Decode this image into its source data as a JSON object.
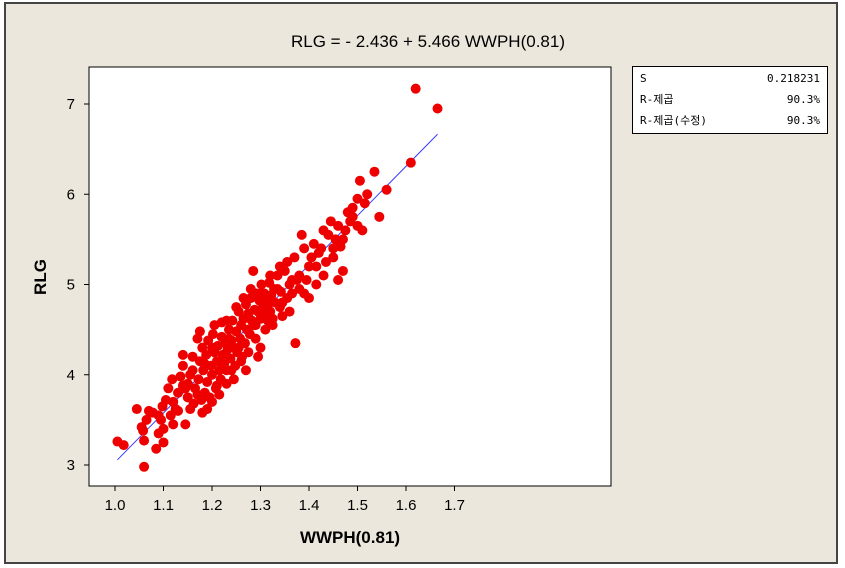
{
  "colors": {
    "background": "#ebe7dc",
    "plot_area": "#ffffff",
    "points": "#ee0000",
    "fit_line": "#3a3aff"
  },
  "stats": [
    {
      "label": "S",
      "value": "0.218231"
    },
    {
      "label": "R-제곱",
      "value": "90.3%"
    },
    {
      "label": "R-제곱(수정)",
      "value": "90.3%"
    }
  ],
  "chart_data": {
    "type": "scatter",
    "title": "RLG = - 2.436 + 5.466 WWPH(0.81)",
    "xlabel": "WWPH(0.81)",
    "ylabel": "RLG",
    "xlim": [
      0.98,
      1.71
    ],
    "ylim": [
      2.8,
      7.4
    ],
    "x_ticks": [
      1.0,
      1.1,
      1.2,
      1.3,
      1.4,
      1.5,
      1.6,
      1.7
    ],
    "x_tick_labels": [
      "1.0",
      "1.1",
      "1.2",
      "1.3",
      "1.4",
      "1.5",
      "1.6",
      "1.7"
    ],
    "y_ticks": [
      3,
      4,
      5,
      6,
      7
    ],
    "y_tick_labels": [
      "3",
      "4",
      "5",
      "6",
      "7"
    ],
    "grid": false,
    "fit_line": {
      "intercept": -2.436,
      "slope": 5.466,
      "x_range": [
        1.005,
        1.665
      ]
    },
    "points": [
      [
        1.005,
        3.26
      ],
      [
        1.018,
        3.22
      ],
      [
        1.045,
        3.62
      ],
      [
        1.055,
        3.42
      ],
      [
        1.058,
        3.38
      ],
      [
        1.06,
        2.98
      ],
      [
        1.06,
        3.27
      ],
      [
        1.065,
        3.5
      ],
      [
        1.07,
        3.6
      ],
      [
        1.078,
        3.58
      ],
      [
        1.085,
        3.18
      ],
      [
        1.09,
        3.35
      ],
      [
        1.095,
        3.5
      ],
      [
        1.098,
        3.65
      ],
      [
        1.1,
        3.4
      ],
      [
        1.105,
        3.72
      ],
      [
        1.11,
        3.85
      ],
      [
        1.115,
        3.55
      ],
      [
        1.118,
        3.95
      ],
      [
        1.12,
        3.7
      ],
      [
        1.125,
        3.62
      ],
      [
        1.13,
        3.8
      ],
      [
        1.135,
        3.98
      ],
      [
        1.14,
        3.88
      ],
      [
        1.14,
        4.22
      ],
      [
        1.145,
        3.45
      ],
      [
        1.15,
        3.75
      ],
      [
        1.15,
        3.9
      ],
      [
        1.155,
        3.62
      ],
      [
        1.16,
        4.05
      ],
      [
        1.162,
        3.68
      ],
      [
        1.165,
        3.85
      ],
      [
        1.17,
        3.78
      ],
      [
        1.172,
        3.95
      ],
      [
        1.175,
        4.15
      ],
      [
        1.175,
        4.48
      ],
      [
        1.178,
        3.72
      ],
      [
        1.18,
        4.3
      ],
      [
        1.182,
        4.05
      ],
      [
        1.185,
        3.8
      ],
      [
        1.188,
        4.22
      ],
      [
        1.19,
        3.92
      ],
      [
        1.192,
        4.38
      ],
      [
        1.195,
        3.75
      ],
      [
        1.198,
        4.1
      ],
      [
        1.2,
        4.0
      ],
      [
        1.202,
        4.45
      ],
      [
        1.205,
        4.25
      ],
      [
        1.208,
        3.85
      ],
      [
        1.21,
        4.15
      ],
      [
        1.212,
        4.32
      ],
      [
        1.215,
        4.05
      ],
      [
        1.218,
        3.95
      ],
      [
        1.22,
        4.42
      ],
      [
        1.222,
        4.22
      ],
      [
        1.225,
        4.12
      ],
      [
        1.228,
        4.35
      ],
      [
        1.23,
        4.05
      ],
      [
        1.232,
        4.28
      ],
      [
        1.235,
        4.5
      ],
      [
        1.238,
        4.18
      ],
      [
        1.24,
        4.38
      ],
      [
        1.242,
        4.6
      ],
      [
        1.245,
        4.3
      ],
      [
        1.248,
        4.1
      ],
      [
        1.25,
        4.48
      ],
      [
        1.252,
        4.25
      ],
      [
        1.255,
        4.7
      ],
      [
        1.258,
        4.4
      ],
      [
        1.26,
        4.55
      ],
      [
        1.262,
        4.2
      ],
      [
        1.265,
        4.62
      ],
      [
        1.268,
        4.35
      ],
      [
        1.27,
        4.78
      ],
      [
        1.272,
        4.5
      ],
      [
        1.275,
        4.68
      ],
      [
        1.278,
        4.45
      ],
      [
        1.28,
        4.85
      ],
      [
        1.282,
        4.6
      ],
      [
        1.285,
        5.15
      ],
      [
        1.288,
        4.72
      ],
      [
        1.29,
        4.55
      ],
      [
        1.292,
        4.9
      ],
      [
        1.295,
        4.7
      ],
      [
        1.298,
        4.82
      ],
      [
        1.3,
        4.62
      ],
      [
        1.302,
        5.0
      ],
      [
        1.305,
        4.75
      ],
      [
        1.308,
        4.9
      ],
      [
        1.31,
        4.68
      ],
      [
        1.312,
        4.85
      ],
      [
        1.315,
        4.78
      ],
      [
        1.318,
        5.02
      ],
      [
        1.32,
        4.7
      ],
      [
        1.322,
        4.88
      ],
      [
        1.325,
        4.62
      ],
      [
        1.328,
        4.95
      ],
      [
        1.33,
        4.8
      ],
      [
        1.335,
        5.1
      ],
      [
        1.34,
        4.75
      ],
      [
        1.342,
        4.92
      ],
      [
        1.345,
        4.65
      ],
      [
        1.35,
        5.15
      ],
      [
        1.355,
        4.85
      ],
      [
        1.36,
        5.0
      ],
      [
        1.365,
        4.9
      ],
      [
        1.37,
        5.3
      ],
      [
        1.372,
        4.35
      ],
      [
        1.375,
        5.05
      ],
      [
        1.38,
        4.95
      ],
      [
        1.385,
        5.55
      ],
      [
        1.39,
        4.9
      ],
      [
        1.395,
        5.05
      ],
      [
        1.4,
        4.85
      ],
      [
        1.405,
        5.3
      ],
      [
        1.41,
        5.45
      ],
      [
        1.415,
        5.2
      ],
      [
        1.42,
        5.35
      ],
      [
        1.425,
        5.4
      ],
      [
        1.43,
        5.6
      ],
      [
        1.435,
        5.25
      ],
      [
        1.44,
        5.55
      ],
      [
        1.445,
        5.7
      ],
      [
        1.45,
        5.3
      ],
      [
        1.455,
        5.5
      ],
      [
        1.46,
        5.65
      ],
      [
        1.465,
        5.42
      ],
      [
        1.47,
        5.15
      ],
      [
        1.475,
        5.6
      ],
      [
        1.48,
        5.8
      ],
      [
        1.485,
        5.7
      ],
      [
        1.49,
        5.85
      ],
      [
        1.5,
        5.65
      ],
      [
        1.505,
        6.15
      ],
      [
        1.51,
        5.6
      ],
      [
        1.515,
        5.9
      ],
      [
        1.52,
        6.0
      ],
      [
        1.535,
        6.25
      ],
      [
        1.545,
        5.75
      ],
      [
        1.56,
        6.05
      ],
      [
        1.61,
        6.35
      ],
      [
        1.62,
        7.17
      ],
      [
        1.665,
        6.95
      ],
      [
        1.2,
        3.7
      ],
      [
        1.215,
        3.78
      ],
      [
        1.19,
        3.62
      ],
      [
        1.23,
        3.9
      ],
      [
        1.245,
        3.95
      ],
      [
        1.26,
        4.15
      ],
      [
        1.275,
        4.25
      ],
      [
        1.29,
        4.4
      ],
      [
        1.3,
        4.3
      ],
      [
        1.31,
        4.5
      ],
      [
        1.27,
        4.05
      ],
      [
        1.285,
        4.55
      ],
      [
        1.2,
        4.3
      ],
      [
        1.17,
        4.4
      ],
      [
        1.16,
        4.2
      ],
      [
        1.14,
        4.1
      ],
      [
        1.13,
        3.6
      ],
      [
        1.12,
        3.45
      ],
      [
        1.1,
        3.25
      ],
      [
        1.09,
        3.55
      ],
      [
        1.18,
        3.58
      ],
      [
        1.21,
        3.88
      ],
      [
        1.23,
        4.6
      ],
      [
        1.25,
        4.75
      ],
      [
        1.28,
        4.95
      ],
      [
        1.32,
        5.1
      ],
      [
        1.34,
        5.2
      ],
      [
        1.36,
        4.7
      ],
      [
        1.38,
        5.1
      ],
      [
        1.4,
        5.2
      ],
      [
        1.43,
        5.1
      ],
      [
        1.45,
        5.4
      ],
      [
        1.46,
        5.05
      ],
      [
        1.3,
        4.9
      ],
      [
        1.325,
        4.55
      ],
      [
        1.345,
        4.8
      ],
      [
        1.355,
        5.25
      ],
      [
        1.24,
        4.05
      ],
      [
        1.265,
        4.85
      ],
      [
        1.22,
        4.58
      ],
      [
        1.185,
        4.12
      ],
      [
        1.155,
        4.0
      ],
      [
        1.145,
        3.85
      ],
      [
        1.205,
        4.55
      ],
      [
        1.235,
        4.4
      ],
      [
        1.255,
        4.3
      ],
      [
        1.295,
        4.2
      ],
      [
        1.315,
        4.6
      ],
      [
        1.335,
        4.95
      ],
      [
        1.365,
        5.05
      ],
      [
        1.39,
        5.4
      ],
      [
        1.415,
        5.0
      ],
      [
        1.47,
        5.5
      ],
      [
        1.49,
        5.75
      ],
      [
        1.5,
        5.95
      ]
    ]
  }
}
